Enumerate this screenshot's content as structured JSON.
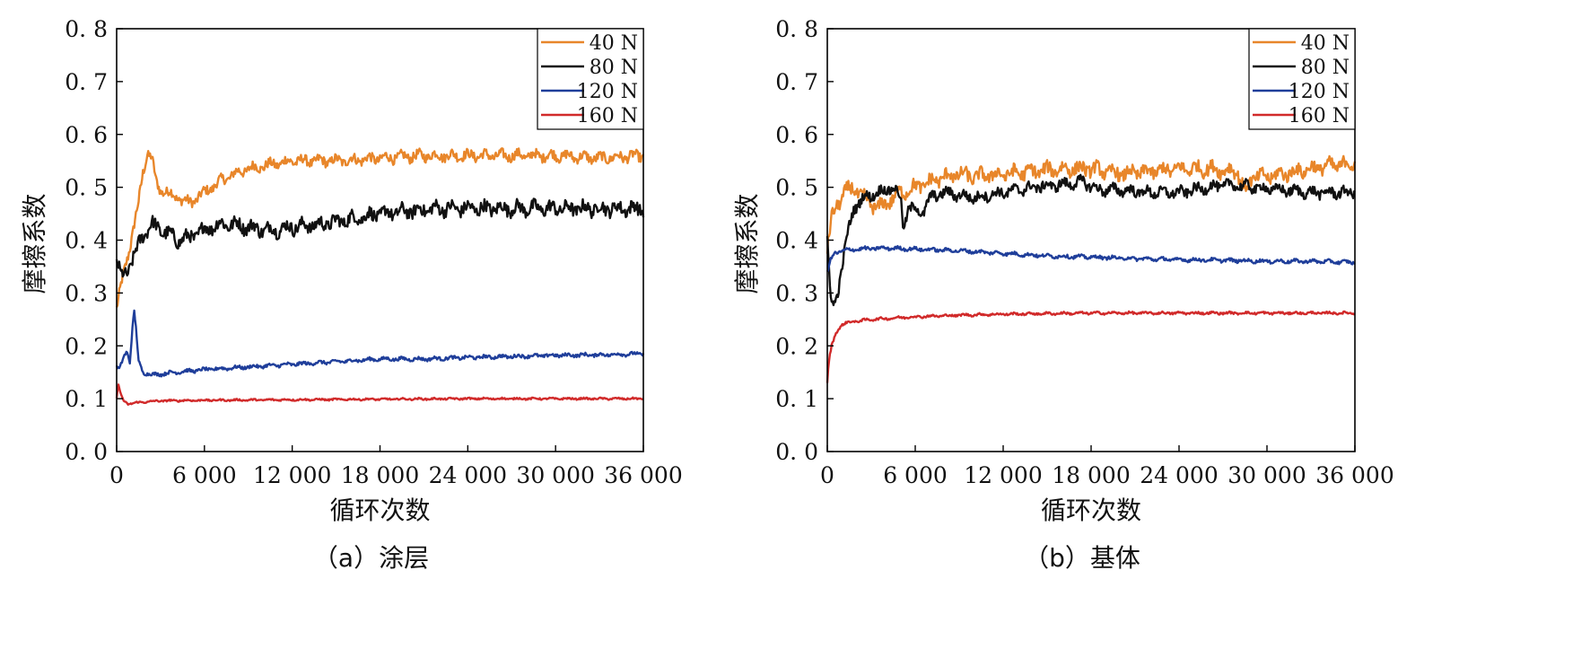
{
  "chart_data": [
    {
      "type": "line",
      "caption": "（a）涂层",
      "xlabel": "循环次数",
      "ylabel": "摩擦系数",
      "xlim": [
        0,
        36000
      ],
      "ylim": [
        0,
        0.8
      ],
      "x_ticks": [
        0,
        6000,
        12000,
        18000,
        24000,
        30000,
        36000
      ],
      "x_tick_labels": [
        "0",
        "6 000",
        "12 000",
        "18 000",
        "24 000",
        "30 000",
        "36 000"
      ],
      "y_ticks": [
        0,
        0.1,
        0.2,
        0.3,
        0.4,
        0.5,
        0.6,
        0.7,
        0.8
      ],
      "y_tick_labels": [
        "0. 0",
        "0. 1",
        "0. 2",
        "0. 3",
        "0. 4",
        "0. 5",
        "0. 6",
        "0. 7",
        "0. 8"
      ],
      "legend_position": "top-right",
      "grid": false,
      "series": [
        {
          "name": "40 N",
          "color": "#E8862A",
          "noise": 0.009,
          "points": [
            [
              0,
              0.27
            ],
            [
              500,
              0.34
            ],
            [
              1000,
              0.4
            ],
            [
              1500,
              0.47
            ],
            [
              1800,
              0.53
            ],
            [
              2100,
              0.565
            ],
            [
              2400,
              0.555
            ],
            [
              2700,
              0.51
            ],
            [
              3000,
              0.495
            ],
            [
              3500,
              0.49
            ],
            [
              4200,
              0.48
            ],
            [
              5000,
              0.47
            ],
            [
              6000,
              0.49
            ],
            [
              7000,
              0.51
            ],
            [
              8000,
              0.525
            ],
            [
              9000,
              0.535
            ],
            [
              10000,
              0.54
            ],
            [
              12000,
              0.55
            ],
            [
              15000,
              0.55
            ],
            [
              18000,
              0.555
            ],
            [
              21000,
              0.56
            ],
            [
              24000,
              0.56
            ],
            [
              27000,
              0.56
            ],
            [
              30000,
              0.56
            ],
            [
              33000,
              0.555
            ],
            [
              36000,
              0.56
            ]
          ]
        },
        {
          "name": "80 N",
          "color": "#111111",
          "noise": 0.012,
          "points": [
            [
              0,
              0.36
            ],
            [
              300,
              0.33
            ],
            [
              700,
              0.34
            ],
            [
              1200,
              0.37
            ],
            [
              1800,
              0.41
            ],
            [
              2400,
              0.43
            ],
            [
              3000,
              0.42
            ],
            [
              3600,
              0.41
            ],
            [
              4200,
              0.4
            ],
            [
              5000,
              0.405
            ],
            [
              6000,
              0.42
            ],
            [
              7000,
              0.43
            ],
            [
              8000,
              0.43
            ],
            [
              9000,
              0.425
            ],
            [
              10000,
              0.42
            ],
            [
              11000,
              0.42
            ],
            [
              12000,
              0.425
            ],
            [
              14000,
              0.43
            ],
            [
              16000,
              0.44
            ],
            [
              18000,
              0.45
            ],
            [
              20000,
              0.455
            ],
            [
              22000,
              0.46
            ],
            [
              24000,
              0.46
            ],
            [
              27000,
              0.46
            ],
            [
              30000,
              0.46
            ],
            [
              33000,
              0.46
            ],
            [
              36000,
              0.46
            ]
          ]
        },
        {
          "name": "120 N",
          "color": "#1F3E9A",
          "noise": 0.003,
          "points": [
            [
              0,
              0.16
            ],
            [
              200,
              0.155
            ],
            [
              500,
              0.18
            ],
            [
              700,
              0.19
            ],
            [
              900,
              0.17
            ],
            [
              1100,
              0.24
            ],
            [
              1200,
              0.265
            ],
            [
              1300,
              0.24
            ],
            [
              1500,
              0.17
            ],
            [
              1800,
              0.15
            ],
            [
              2500,
              0.145
            ],
            [
              4000,
              0.15
            ],
            [
              6000,
              0.155
            ],
            [
              9000,
              0.16
            ],
            [
              12000,
              0.165
            ],
            [
              15000,
              0.17
            ],
            [
              18000,
              0.175
            ],
            [
              21000,
              0.175
            ],
            [
              24000,
              0.178
            ],
            [
              27000,
              0.18
            ],
            [
              30000,
              0.182
            ],
            [
              33000,
              0.183
            ],
            [
              36000,
              0.185
            ]
          ]
        },
        {
          "name": "160 N",
          "color": "#D12A2A",
          "noise": 0.0015,
          "points": [
            [
              0,
              0.1
            ],
            [
              100,
              0.13
            ],
            [
              250,
              0.11
            ],
            [
              500,
              0.095
            ],
            [
              800,
              0.09
            ],
            [
              1500,
              0.093
            ],
            [
              3000,
              0.096
            ],
            [
              6000,
              0.097
            ],
            [
              12000,
              0.098
            ],
            [
              18000,
              0.099
            ],
            [
              24000,
              0.1
            ],
            [
              30000,
              0.1
            ],
            [
              36000,
              0.1
            ]
          ]
        }
      ]
    },
    {
      "type": "line",
      "caption": "（b）基体",
      "xlabel": "循环次数",
      "ylabel": "摩擦系数",
      "xlim": [
        0,
        36000
      ],
      "ylim": [
        0,
        0.8
      ],
      "x_ticks": [
        0,
        6000,
        12000,
        18000,
        24000,
        30000,
        36000
      ],
      "x_tick_labels": [
        "0",
        "6 000",
        "12 000",
        "18 000",
        "24 000",
        "30 000",
        "36 000"
      ],
      "y_ticks": [
        0,
        0.1,
        0.2,
        0.3,
        0.4,
        0.5,
        0.6,
        0.7,
        0.8
      ],
      "y_tick_labels": [
        "0. 0",
        "0. 1",
        "0. 2",
        "0. 3",
        "0. 4",
        "0. 5",
        "0. 6",
        "0. 7",
        "0. 8"
      ],
      "legend_position": "top-right",
      "grid": false,
      "series": [
        {
          "name": "40 N",
          "color": "#E8862A",
          "noise": 0.012,
          "points": [
            [
              0,
              0.38
            ],
            [
              300,
              0.44
            ],
            [
              700,
              0.47
            ],
            [
              1200,
              0.49
            ],
            [
              1800,
              0.5
            ],
            [
              2400,
              0.48
            ],
            [
              3000,
              0.47
            ],
            [
              3500,
              0.46
            ],
            [
              4000,
              0.47
            ],
            [
              5000,
              0.49
            ],
            [
              6000,
              0.5
            ],
            [
              7000,
              0.51
            ],
            [
              8000,
              0.52
            ],
            [
              9000,
              0.525
            ],
            [
              10000,
              0.52
            ],
            [
              12000,
              0.525
            ],
            [
              14000,
              0.53
            ],
            [
              16000,
              0.535
            ],
            [
              18000,
              0.535
            ],
            [
              20000,
              0.525
            ],
            [
              22000,
              0.53
            ],
            [
              24000,
              0.535
            ],
            [
              26000,
              0.535
            ],
            [
              28000,
              0.53
            ],
            [
              28500,
              0.49
            ],
            [
              29000,
              0.52
            ],
            [
              30000,
              0.52
            ],
            [
              32000,
              0.53
            ],
            [
              34000,
              0.54
            ],
            [
              36000,
              0.545
            ]
          ]
        },
        {
          "name": "80 N",
          "color": "#111111",
          "noise": 0.009,
          "points": [
            [
              0,
              0.4
            ],
            [
              200,
              0.3
            ],
            [
              400,
              0.27
            ],
            [
              700,
              0.3
            ],
            [
              1000,
              0.35
            ],
            [
              1300,
              0.4
            ],
            [
              1800,
              0.46
            ],
            [
              2500,
              0.48
            ],
            [
              3500,
              0.49
            ],
            [
              4500,
              0.5
            ],
            [
              5000,
              0.48
            ],
            [
              5200,
              0.42
            ],
            [
              5500,
              0.46
            ],
            [
              6000,
              0.46
            ],
            [
              6500,
              0.45
            ],
            [
              7000,
              0.48
            ],
            [
              8000,
              0.49
            ],
            [
              9000,
              0.485
            ],
            [
              10000,
              0.48
            ],
            [
              12000,
              0.49
            ],
            [
              14000,
              0.5
            ],
            [
              16000,
              0.505
            ],
            [
              17500,
              0.51
            ],
            [
              18500,
              0.495
            ],
            [
              20000,
              0.495
            ],
            [
              22000,
              0.49
            ],
            [
              24000,
              0.49
            ],
            [
              26000,
              0.5
            ],
            [
              27500,
              0.505
            ],
            [
              29000,
              0.5
            ],
            [
              31000,
              0.495
            ],
            [
              33000,
              0.49
            ],
            [
              36000,
              0.49
            ]
          ]
        },
        {
          "name": "120 N",
          "color": "#1F3E9A",
          "noise": 0.003,
          "points": [
            [
              0,
              0.34
            ],
            [
              200,
              0.36
            ],
            [
              500,
              0.375
            ],
            [
              1000,
              0.38
            ],
            [
              2000,
              0.383
            ],
            [
              4000,
              0.385
            ],
            [
              6000,
              0.383
            ],
            [
              9000,
              0.38
            ],
            [
              12000,
              0.375
            ],
            [
              15000,
              0.37
            ],
            [
              18000,
              0.368
            ],
            [
              21000,
              0.365
            ],
            [
              24000,
              0.363
            ],
            [
              27000,
              0.362
            ],
            [
              30000,
              0.36
            ],
            [
              33000,
              0.36
            ],
            [
              36000,
              0.358
            ]
          ]
        },
        {
          "name": "160 N",
          "color": "#D12A2A",
          "noise": 0.002,
          "points": [
            [
              0,
              0.13
            ],
            [
              100,
              0.17
            ],
            [
              300,
              0.2
            ],
            [
              600,
              0.225
            ],
            [
              1000,
              0.24
            ],
            [
              1500,
              0.245
            ],
            [
              3000,
              0.25
            ],
            [
              6000,
              0.255
            ],
            [
              9000,
              0.258
            ],
            [
              12000,
              0.26
            ],
            [
              18000,
              0.262
            ],
            [
              24000,
              0.262
            ],
            [
              30000,
              0.262
            ],
            [
              36000,
              0.262
            ]
          ]
        }
      ]
    }
  ]
}
